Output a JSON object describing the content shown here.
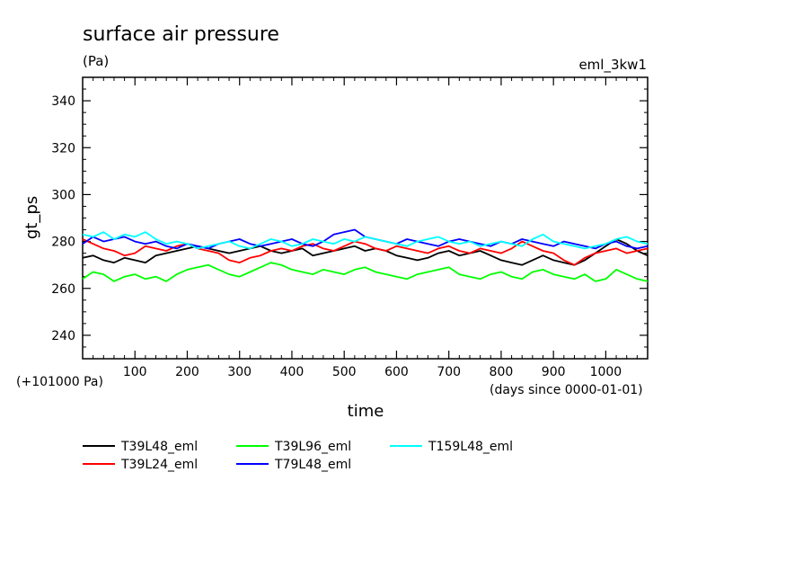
{
  "chart_data": {
    "type": "line",
    "title": "surface air pressure",
    "units": "(Pa)",
    "experiment": "eml_3kw1",
    "xlabel": "time",
    "x_units": "(days since 0000-01-01)",
    "ylabel": "gt_ps",
    "offset_label": "(+101000 Pa)",
    "xlim": [
      0,
      1080
    ],
    "ylim": [
      230,
      350
    ],
    "x_ticks": [
      100,
      200,
      300,
      400,
      500,
      600,
      700,
      800,
      900,
      1000
    ],
    "y_ticks": [
      240,
      260,
      280,
      300,
      320,
      340
    ],
    "grid": false,
    "legend_position": "bottom-left",
    "series": [
      {
        "name": "T39L48_eml",
        "color": "#000000",
        "x": [
          0,
          20,
          40,
          60,
          80,
          100,
          120,
          140,
          160,
          180,
          200,
          220,
          240,
          260,
          280,
          300,
          320,
          340,
          360,
          380,
          400,
          420,
          440,
          460,
          480,
          500,
          520,
          540,
          560,
          580,
          600,
          620,
          640,
          660,
          680,
          700,
          720,
          740,
          760,
          780,
          800,
          820,
          840,
          860,
          880,
          900,
          920,
          940,
          960,
          980,
          1000,
          1020,
          1040,
          1060,
          1080
        ],
        "values": [
          273,
          274,
          272,
          271,
          273,
          272,
          271,
          274,
          275,
          276,
          277,
          278,
          277,
          276,
          275,
          276,
          277,
          278,
          276,
          275,
          276,
          277,
          274,
          275,
          276,
          277,
          278,
          276,
          277,
          276,
          274,
          273,
          272,
          273,
          275,
          276,
          274,
          275,
          276,
          274,
          272,
          271,
          270,
          272,
          274,
          272,
          271,
          270,
          272,
          275,
          278,
          281,
          279,
          276,
          274
        ]
      },
      {
        "name": "T39L24_eml",
        "color": "#ff0000",
        "x": [
          0,
          20,
          40,
          60,
          80,
          100,
          120,
          140,
          160,
          180,
          200,
          220,
          240,
          260,
          280,
          300,
          320,
          340,
          360,
          380,
          400,
          420,
          440,
          460,
          480,
          500,
          520,
          540,
          560,
          580,
          600,
          620,
          640,
          660,
          680,
          700,
          720,
          740,
          760,
          780,
          800,
          820,
          840,
          860,
          880,
          900,
          920,
          940,
          960,
          980,
          1000,
          1020,
          1040,
          1060,
          1080
        ],
        "values": [
          281,
          279,
          277,
          276,
          274,
          275,
          278,
          277,
          276,
          278,
          279,
          277,
          276,
          275,
          272,
          271,
          273,
          274,
          276,
          277,
          276,
          278,
          279,
          277,
          276,
          278,
          280,
          279,
          277,
          276,
          278,
          277,
          276,
          275,
          277,
          278,
          276,
          275,
          277,
          276,
          275,
          277,
          280,
          278,
          276,
          275,
          272,
          270,
          273,
          275,
          276,
          277,
          275,
          276,
          277
        ]
      },
      {
        "name": "T39L96_eml",
        "color": "#00ff00",
        "x": [
          0,
          20,
          40,
          60,
          80,
          100,
          120,
          140,
          160,
          180,
          200,
          220,
          240,
          260,
          280,
          300,
          320,
          340,
          360,
          380,
          400,
          420,
          440,
          460,
          480,
          500,
          520,
          540,
          560,
          580,
          600,
          620,
          640,
          660,
          680,
          700,
          720,
          740,
          760,
          780,
          800,
          820,
          840,
          860,
          880,
          900,
          920,
          940,
          960,
          980,
          1000,
          1020,
          1040,
          1060,
          1080
        ],
        "values": [
          264,
          267,
          266,
          263,
          265,
          266,
          264,
          265,
          263,
          266,
          268,
          269,
          270,
          268,
          266,
          265,
          267,
          269,
          271,
          270,
          268,
          267,
          266,
          268,
          267,
          266,
          268,
          269,
          267,
          266,
          265,
          264,
          266,
          267,
          268,
          269,
          266,
          265,
          264,
          266,
          267,
          265,
          264,
          267,
          268,
          266,
          265,
          264,
          266,
          263,
          264,
          268,
          266,
          264,
          263
        ]
      },
      {
        "name": "T79L48_eml",
        "color": "#0000ff",
        "x": [
          0,
          20,
          40,
          60,
          80,
          100,
          120,
          140,
          160,
          180,
          200,
          220,
          240,
          260,
          280,
          300,
          320,
          340,
          360,
          380,
          400,
          420,
          440,
          460,
          480,
          500,
          520,
          540,
          560,
          580,
          600,
          620,
          640,
          660,
          680,
          700,
          720,
          740,
          760,
          780,
          800,
          820,
          840,
          860,
          880,
          900,
          920,
          940,
          960,
          980,
          1000,
          1020,
          1040,
          1060,
          1080
        ],
        "values": [
          279,
          282,
          280,
          281,
          282,
          280,
          279,
          280,
          278,
          277,
          279,
          278,
          277,
          279,
          280,
          281,
          279,
          278,
          279,
          280,
          281,
          279,
          278,
          280,
          283,
          284,
          285,
          282,
          281,
          280,
          279,
          281,
          280,
          279,
          278,
          280,
          281,
          280,
          279,
          278,
          280,
          279,
          281,
          280,
          279,
          278,
          280,
          279,
          278,
          277,
          279,
          280,
          278,
          277,
          278
        ]
      },
      {
        "name": "T159L48_eml",
        "color": "#00ffff",
        "x": [
          0,
          20,
          40,
          60,
          80,
          100,
          120,
          140,
          160,
          180,
          200,
          220,
          240,
          260,
          280,
          300,
          320,
          340,
          360,
          380,
          400,
          420,
          440,
          460,
          480,
          500,
          520,
          540,
          560,
          580,
          600,
          620,
          640,
          660,
          680,
          700,
          720,
          740,
          760,
          780,
          800,
          820,
          840,
          860,
          880,
          900,
          920,
          940,
          960,
          980,
          1000,
          1020,
          1040,
          1060,
          1080
        ],
        "values": [
          283,
          282,
          284,
          281,
          283,
          282,
          284,
          281,
          279,
          280,
          279,
          277,
          278,
          279,
          280,
          278,
          277,
          279,
          281,
          280,
          278,
          279,
          281,
          280,
          279,
          281,
          280,
          282,
          281,
          280,
          279,
          278,
          280,
          281,
          282,
          280,
          279,
          280,
          278,
          279,
          280,
          279,
          278,
          281,
          283,
          280,
          279,
          278,
          277,
          278,
          279,
          281,
          282,
          280,
          279
        ]
      }
    ]
  }
}
